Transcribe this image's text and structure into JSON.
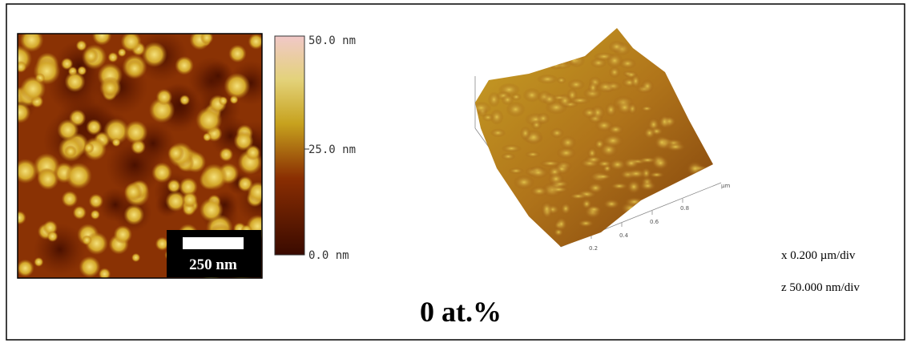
{
  "image": {
    "scale_bar": "250 nm"
  },
  "colorbar": {
    "labels": [
      "50.0 nm",
      "25.0 nm",
      "0.0 nm"
    ]
  },
  "surface_plot": {
    "axis_ticks": [
      "0.2",
      "0.4",
      "0.6",
      "0.8"
    ],
    "axis_unit": "µm"
  },
  "scales": {
    "x": "x 0.200 µm/div",
    "z": "z 50.000 nm/div"
  },
  "caption": "0 at.%"
}
